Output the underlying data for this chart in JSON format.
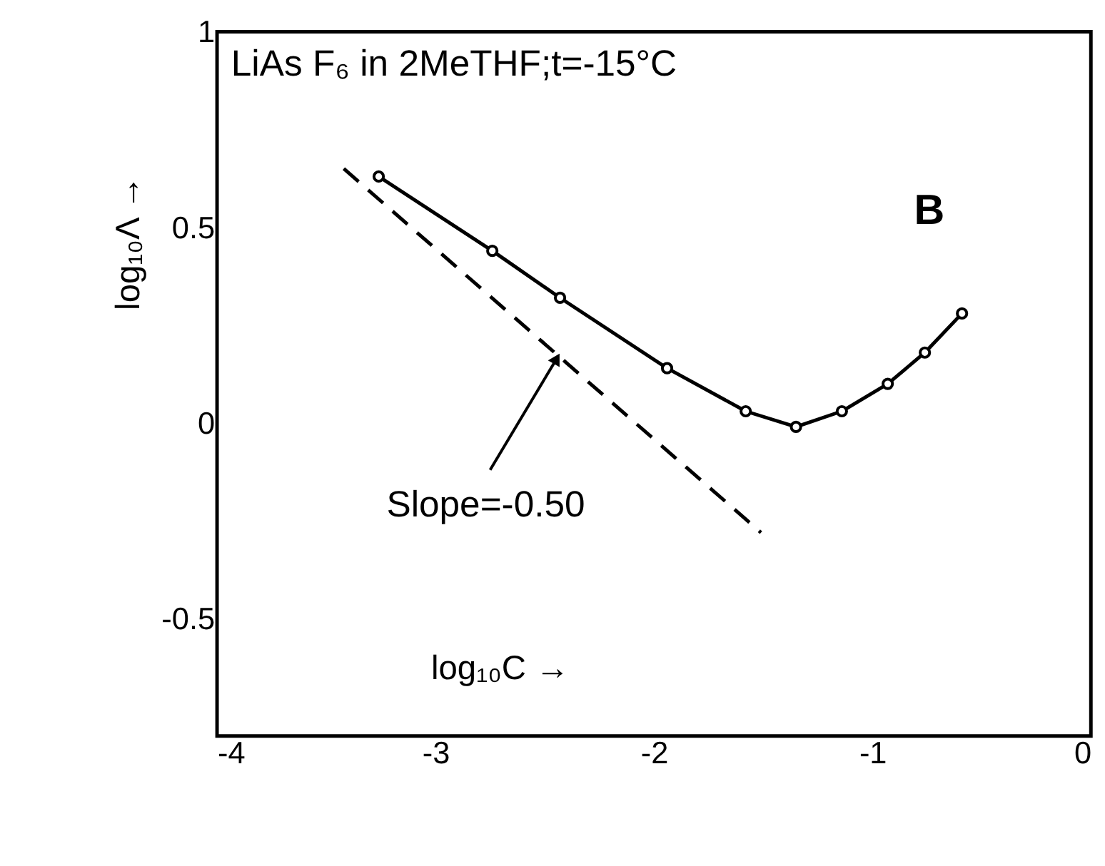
{
  "chart_data": {
    "type": "line",
    "xlabel": "log₁₀C →",
    "ylabel": "log₁₀Λ →",
    "xlim": [
      -4,
      0
    ],
    "xticks": [
      -4,
      -3,
      -2,
      -1,
      0
    ],
    "ylim": [
      -0.8,
      1
    ],
    "yticks": [
      1,
      0.5,
      0,
      -0.5
    ],
    "grid": false,
    "series": [
      {
        "color": "#000000",
        "marker": "circle",
        "line_style": "solid",
        "x": [
          -3.26,
          -2.74,
          -2.43,
          -1.94,
          -1.58,
          -1.35,
          -1.14,
          -0.93,
          -0.76,
          -0.59
        ],
        "values": [
          0.63,
          0.44,
          0.32,
          0.14,
          0.03,
          -0.01,
          0.03,
          0.1,
          0.18,
          0.28
        ]
      },
      {
        "color": "#000000",
        "marker": "none",
        "line_style": "dashed",
        "x": [
          -3.42,
          -1.51
        ],
        "values": [
          0.65,
          -0.28
        ]
      }
    ],
    "annotations": [
      "LiAs F₆ in 2MeTHF;t=-15°C",
      "B",
      {
        "text": "Slope=-0.50",
        "x": -2.45,
        "y": 0.16
      }
    ]
  }
}
